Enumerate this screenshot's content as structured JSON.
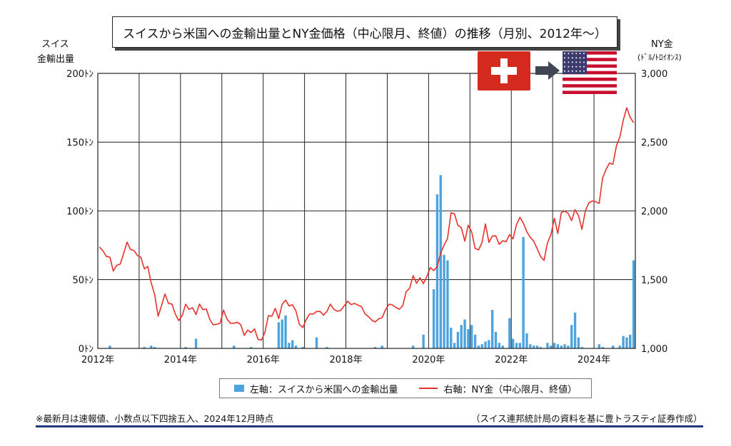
{
  "chart_data": {
    "type": "bar",
    "title": "スイスから米国への金輸出量とNY金価格（中心限月、終値）の推移（月別、2012年～）",
    "left_axis": {
      "label_line1": "スイス",
      "label_line2": "金輸出量",
      "range": [
        0,
        200
      ],
      "ticks": [
        "0ﾄﾝ",
        "50ﾄﾝ",
        "100ﾄﾝ",
        "150ﾄﾝ",
        "200ﾄﾝ"
      ],
      "tick_values": [
        0,
        50,
        100,
        150,
        200
      ]
    },
    "right_axis": {
      "label_line1": "NY金",
      "label_line2": "(ﾄﾞﾙ/ﾄﾛｲｵﾝｽ)",
      "range": [
        1000,
        3000
      ],
      "ticks": [
        "1,000",
        "1,500",
        "2,000",
        "2,500",
        "3,000"
      ],
      "tick_values": [
        1000,
        1500,
        2000,
        2500,
        3000
      ]
    },
    "x_axis": {
      "range": [
        "2012-01",
        "2025-01"
      ],
      "ticks": [
        "2012年",
        "2014年",
        "2016年",
        "2018年",
        "2020年",
        "2022年",
        "2024年"
      ],
      "tick_years": [
        2012,
        2014,
        2016,
        2018,
        2020,
        2022,
        2024
      ]
    },
    "grid": "vertical",
    "legend_position": "bottom",
    "series": [
      {
        "name": "左軸：スイスから米国への金輸出量",
        "kind": "bar",
        "axis": "left",
        "color": "#4DA3DF",
        "points": [
          [
            "2012-04",
            2
          ],
          [
            "2013-02",
            1
          ],
          [
            "2013-04",
            2
          ],
          [
            "2013-05",
            1
          ],
          [
            "2014-02",
            1
          ],
          [
            "2014-05",
            7
          ],
          [
            "2015-04",
            2
          ],
          [
            "2015-09",
            1
          ],
          [
            "2016-05",
            19
          ],
          [
            "2016-06",
            21
          ],
          [
            "2016-07",
            24
          ],
          [
            "2016-08",
            4
          ],
          [
            "2016-09",
            6
          ],
          [
            "2016-10",
            2
          ],
          [
            "2016-12",
            1
          ],
          [
            "2017-04",
            8
          ],
          [
            "2017-07",
            1
          ],
          [
            "2018-09",
            1
          ],
          [
            "2018-11",
            2
          ],
          [
            "2019-08",
            2
          ],
          [
            "2019-11",
            10
          ],
          [
            "2020-02",
            43
          ],
          [
            "2020-03",
            112
          ],
          [
            "2020-04",
            126
          ],
          [
            "2020-05",
            68
          ],
          [
            "2020-06",
            64
          ],
          [
            "2020-07",
            15
          ],
          [
            "2020-08",
            4
          ],
          [
            "2020-09",
            12
          ],
          [
            "2020-10",
            17
          ],
          [
            "2020-11",
            21
          ],
          [
            "2020-12",
            14
          ],
          [
            "2021-01",
            17
          ],
          [
            "2021-02",
            10
          ],
          [
            "2021-03",
            2
          ],
          [
            "2021-04",
            3
          ],
          [
            "2021-05",
            5
          ],
          [
            "2021-06",
            6
          ],
          [
            "2021-07",
            28
          ],
          [
            "2021-08",
            12
          ],
          [
            "2021-09",
            4
          ],
          [
            "2021-10",
            2
          ],
          [
            "2021-12",
            22
          ],
          [
            "2022-01",
            7
          ],
          [
            "2022-02",
            4
          ],
          [
            "2022-03",
            4
          ],
          [
            "2022-04",
            81
          ],
          [
            "2022-05",
            11
          ],
          [
            "2022-06",
            3
          ],
          [
            "2022-07",
            2
          ],
          [
            "2022-08",
            2
          ],
          [
            "2022-09",
            1
          ],
          [
            "2022-11",
            4
          ],
          [
            "2022-12",
            2
          ],
          [
            "2023-01",
            4
          ],
          [
            "2023-02",
            3
          ],
          [
            "2023-03",
            2
          ],
          [
            "2023-04",
            3
          ],
          [
            "2023-05",
            2
          ],
          [
            "2023-06",
            17
          ],
          [
            "2023-07",
            26
          ],
          [
            "2023-08",
            8
          ],
          [
            "2023-09",
            1
          ],
          [
            "2024-02",
            3
          ],
          [
            "2024-03",
            1
          ],
          [
            "2024-06",
            2
          ],
          [
            "2024-08",
            2
          ],
          [
            "2024-09",
            9
          ],
          [
            "2024-10",
            8
          ],
          [
            "2024-11",
            10
          ],
          [
            "2024-12",
            64
          ]
        ]
      },
      {
        "name": "右軸：NY金（中心限月、終値）",
        "kind": "line",
        "axis": "right",
        "color": "#E8322B",
        "points": [
          [
            "2012-01",
            1737
          ],
          [
            "2012-02",
            1710
          ],
          [
            "2012-03",
            1668
          ],
          [
            "2012-04",
            1664
          ],
          [
            "2012-05",
            1562
          ],
          [
            "2012-06",
            1604
          ],
          [
            "2012-07",
            1613
          ],
          [
            "2012-08",
            1690
          ],
          [
            "2012-09",
            1773
          ],
          [
            "2012-10",
            1718
          ],
          [
            "2012-11",
            1712
          ],
          [
            "2012-12",
            1675
          ],
          [
            "2013-01",
            1663
          ],
          [
            "2013-02",
            1579
          ],
          [
            "2013-03",
            1596
          ],
          [
            "2013-04",
            1476
          ],
          [
            "2013-05",
            1393
          ],
          [
            "2013-06",
            1234
          ],
          [
            "2013-07",
            1312
          ],
          [
            "2013-08",
            1396
          ],
          [
            "2013-09",
            1327
          ],
          [
            "2013-10",
            1323
          ],
          [
            "2013-11",
            1250
          ],
          [
            "2013-12",
            1202
          ],
          [
            "2014-01",
            1240
          ],
          [
            "2014-02",
            1322
          ],
          [
            "2014-03",
            1284
          ],
          [
            "2014-04",
            1296
          ],
          [
            "2014-05",
            1246
          ],
          [
            "2014-06",
            1322
          ],
          [
            "2014-07",
            1282
          ],
          [
            "2014-08",
            1287
          ],
          [
            "2014-09",
            1210
          ],
          [
            "2014-10",
            1171
          ],
          [
            "2014-11",
            1175
          ],
          [
            "2014-12",
            1184
          ],
          [
            "2015-01",
            1279
          ],
          [
            "2015-02",
            1213
          ],
          [
            "2015-03",
            1183
          ],
          [
            "2015-04",
            1183
          ],
          [
            "2015-05",
            1190
          ],
          [
            "2015-06",
            1172
          ],
          [
            "2015-07",
            1095
          ],
          [
            "2015-08",
            1133
          ],
          [
            "2015-09",
            1115
          ],
          [
            "2015-10",
            1142
          ],
          [
            "2015-11",
            1065
          ],
          [
            "2015-12",
            1061
          ],
          [
            "2016-01",
            1116
          ],
          [
            "2016-02",
            1238
          ],
          [
            "2016-03",
            1234
          ],
          [
            "2016-04",
            1291
          ],
          [
            "2016-05",
            1216
          ],
          [
            "2016-06",
            1320
          ],
          [
            "2016-07",
            1351
          ],
          [
            "2016-08",
            1309
          ],
          [
            "2016-09",
            1317
          ],
          [
            "2016-10",
            1273
          ],
          [
            "2016-11",
            1174
          ],
          [
            "2016-12",
            1152
          ],
          [
            "2017-01",
            1211
          ],
          [
            "2017-02",
            1252
          ],
          [
            "2017-03",
            1249
          ],
          [
            "2017-04",
            1268
          ],
          [
            "2017-05",
            1269
          ],
          [
            "2017-06",
            1242
          ],
          [
            "2017-07",
            1269
          ],
          [
            "2017-08",
            1322
          ],
          [
            "2017-09",
            1284
          ],
          [
            "2017-10",
            1270
          ],
          [
            "2017-11",
            1276
          ],
          [
            "2017-12",
            1309
          ],
          [
            "2018-01",
            1343
          ],
          [
            "2018-02",
            1318
          ],
          [
            "2018-03",
            1327
          ],
          [
            "2018-04",
            1315
          ],
          [
            "2018-05",
            1305
          ],
          [
            "2018-06",
            1253
          ],
          [
            "2018-07",
            1232
          ],
          [
            "2018-08",
            1206
          ],
          [
            "2018-09",
            1192
          ],
          [
            "2018-10",
            1215
          ],
          [
            "2018-11",
            1223
          ],
          [
            "2018-12",
            1281
          ],
          [
            "2019-01",
            1321
          ],
          [
            "2019-02",
            1316
          ],
          [
            "2019-03",
            1298
          ],
          [
            "2019-04",
            1285
          ],
          [
            "2019-05",
            1311
          ],
          [
            "2019-06",
            1413
          ],
          [
            "2019-07",
            1437
          ],
          [
            "2019-08",
            1529
          ],
          [
            "2019-09",
            1473
          ],
          [
            "2019-10",
            1514
          ],
          [
            "2019-11",
            1471
          ],
          [
            "2019-12",
            1523
          ],
          [
            "2020-01",
            1588
          ],
          [
            "2020-02",
            1566
          ],
          [
            "2020-03",
            1596
          ],
          [
            "2020-04",
            1695
          ],
          [
            "2020-05",
            1751
          ],
          [
            "2020-06",
            1800
          ],
          [
            "2020-07",
            1986
          ],
          [
            "2020-08",
            1978
          ],
          [
            "2020-09",
            1895
          ],
          [
            "2020-10",
            1879
          ],
          [
            "2020-11",
            1780
          ],
          [
            "2020-12",
            1895
          ],
          [
            "2021-01",
            1848
          ],
          [
            "2021-02",
            1728
          ],
          [
            "2021-03",
            1716
          ],
          [
            "2021-04",
            1769
          ],
          [
            "2021-05",
            1905
          ],
          [
            "2021-06",
            1771
          ],
          [
            "2021-07",
            1817
          ],
          [
            "2021-08",
            1818
          ],
          [
            "2021-09",
            1757
          ],
          [
            "2021-10",
            1783
          ],
          [
            "2021-11",
            1776
          ],
          [
            "2021-12",
            1828
          ],
          [
            "2022-01",
            1796
          ],
          [
            "2022-02",
            1900
          ],
          [
            "2022-03",
            1954
          ],
          [
            "2022-04",
            1911
          ],
          [
            "2022-05",
            1848
          ],
          [
            "2022-06",
            1807
          ],
          [
            "2022-07",
            1781
          ],
          [
            "2022-08",
            1726
          ],
          [
            "2022-09",
            1668
          ],
          [
            "2022-10",
            1640
          ],
          [
            "2022-11",
            1768
          ],
          [
            "2022-12",
            1826
          ],
          [
            "2023-01",
            1945
          ],
          [
            "2023-02",
            1836
          ],
          [
            "2023-03",
            1986
          ],
          [
            "2023-04",
            1999
          ],
          [
            "2023-05",
            1982
          ],
          [
            "2023-06",
            1929
          ],
          [
            "2023-07",
            2009
          ],
          [
            "2023-08",
            1966
          ],
          [
            "2023-09",
            1866
          ],
          [
            "2023-10",
            2001
          ],
          [
            "2023-11",
            2057
          ],
          [
            "2023-12",
            2072
          ],
          [
            "2024-01",
            2067
          ],
          [
            "2024-02",
            2054
          ],
          [
            "2024-03",
            2238
          ],
          [
            "2024-04",
            2302
          ],
          [
            "2024-05",
            2348
          ],
          [
            "2024-06",
            2339
          ],
          [
            "2024-07",
            2473
          ],
          [
            "2024-08",
            2536
          ],
          [
            "2024-09",
            2660
          ],
          [
            "2024-10",
            2749
          ],
          [
            "2024-11",
            2681
          ],
          [
            "2024-12",
            2641
          ]
        ]
      }
    ]
  },
  "legend": {
    "bar_label": "左軸：スイスから米国への金輸出量",
    "line_label": "右軸：NY金（中心限月、終値）"
  },
  "footnote_left": "※最新月は速報値、小数点以下四捨五入、2024年12月時点",
  "footnote_right": "（スイス連邦統計局の資料を基に豊トラスティ証券作成）",
  "colors": {
    "bar": "#4DA3DF",
    "line": "#E8322B",
    "swiss_red": "#D52B1E",
    "us_blue": "#3C3B6E",
    "us_red": "#C8102E",
    "arrow": "#3D4652",
    "rule": "#1F3A7A"
  },
  "icons": [
    "swiss-flag-icon",
    "arrow-right-icon",
    "us-flag-icon"
  ]
}
